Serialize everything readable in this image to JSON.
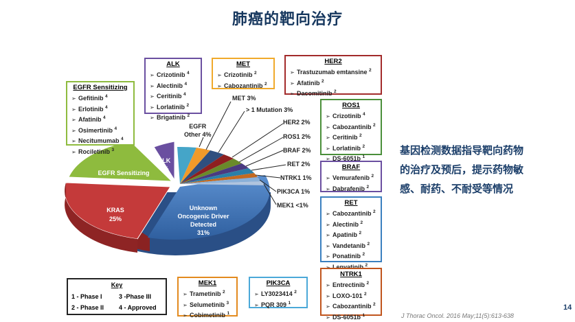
{
  "title": "肺癌的靶向治疗",
  "description": [
    "基因检测数据指导靶向药物",
    "的治疗及预后，提示药物敏",
    "感、耐药、不耐受等情况"
  ],
  "pie_labels": {
    "unknown": [
      "Unknown",
      "Oncogenic Driver",
      "Detected",
      "31%"
    ],
    "kras": [
      "KRAS",
      "25%"
    ],
    "egfr": [
      "EGFR Sensitizing",
      "17%"
    ],
    "alk": [
      "ALK",
      "7%"
    ]
  },
  "callouts": {
    "egfr_other": [
      "EGFR",
      "Other 4%"
    ],
    "met": "MET 3%",
    "mutation": "> 1 Mutation 3%",
    "her2": "HER2 2%",
    "ros1": "ROS1 2%",
    "braf": "BRAF 2%",
    "ret": "RET 2%",
    "ntrk1": "NTRK1 1%",
    "pik3ca": "PIK3CA 1%",
    "mek1": "MEK1 <1%"
  },
  "colors": {
    "egfr": "#4a8f3a",
    "alk": "#6a4fa0",
    "met": "#e38a1e",
    "her2": "#a22a2a",
    "ros1": "#4a8f3a",
    "braf": "#6a4fa0",
    "ret": "#3a7fbf",
    "ntrk1": "#c0541c",
    "mek1": "#e38a1e",
    "pik3ca": "#4aa8d8",
    "title": "#16375e"
  },
  "boxes": {
    "egfr": {
      "title": "EGFR Sensitizing",
      "items": [
        {
          "name": "Gefitinib",
          "sup": "4"
        },
        {
          "name": "Erlotinib",
          "sup": "4"
        },
        {
          "name": "Afatinib",
          "sup": "4"
        },
        {
          "name": "Osimertinib",
          "sup": "4"
        },
        {
          "name": "Necitumumab",
          "sup": "4"
        },
        {
          "name": "Rociletinib",
          "sup": "3"
        }
      ]
    },
    "alk": {
      "title": "ALK",
      "items": [
        {
          "name": "Crizotinib",
          "sup": "4"
        },
        {
          "name": "Alectinib",
          "sup": "4"
        },
        {
          "name": "Ceritinib",
          "sup": "4"
        },
        {
          "name": "Lorlatinib",
          "sup": "2"
        },
        {
          "name": "Brigatinib",
          "sup": "2"
        }
      ]
    },
    "met": {
      "title": "MET",
      "items": [
        {
          "name": "Crizotinib",
          "sup": "2"
        },
        {
          "name": "Cabozantinib",
          "sup": "2"
        }
      ]
    },
    "her2": {
      "title": "HER2",
      "items": [
        {
          "name": "Trastuzumab emtansine",
          "sup": "2"
        },
        {
          "name": "Afatinib",
          "sup": "2"
        },
        {
          "name": "Dacomitinib",
          "sup": "2"
        }
      ]
    },
    "ros1": {
      "title": "ROS1",
      "items": [
        {
          "name": "Crizotinib",
          "sup": "4"
        },
        {
          "name": "Cabozantinib",
          "sup": "2"
        },
        {
          "name": "Ceritinib",
          "sup": "2"
        },
        {
          "name": "Lorlatinib",
          "sup": "2"
        },
        {
          "name": "DS-6051b",
          "sup": "1"
        }
      ]
    },
    "braf": {
      "title": "BRAF",
      "items": [
        {
          "name": "Vemurafenib",
          "sup": "2"
        },
        {
          "name": "Dabrafenib",
          "sup": "2"
        }
      ]
    },
    "ret": {
      "title": "RET",
      "items": [
        {
          "name": "Cabozantinib",
          "sup": "2"
        },
        {
          "name": "Alectinib",
          "sup": "2"
        },
        {
          "name": "Apatinib",
          "sup": "2"
        },
        {
          "name": "Vandetanib",
          "sup": "2"
        },
        {
          "name": "Ponatinib",
          "sup": "2"
        },
        {
          "name": "Lenvatinib",
          "sup": "2"
        }
      ]
    },
    "ntrk1": {
      "title": "NTRK1",
      "items": [
        {
          "name": "Entrectinib",
          "sup": "2"
        },
        {
          "name": "LOXO-101",
          "sup": "2"
        },
        {
          "name": "Cabozantinib",
          "sup": "2"
        },
        {
          "name": "DS-6051b",
          "sup": "1"
        }
      ]
    },
    "mek1": {
      "title": "MEK1",
      "items": [
        {
          "name": "Trametinib",
          "sup": "2"
        },
        {
          "name": "Selumetinib",
          "sup": "3"
        },
        {
          "name": "Cobimetinib",
          "sup": "1"
        }
      ]
    },
    "pik3ca": {
      "title": "PIK3CA",
      "items": [
        {
          "name": "LY3023414",
          "sup": "2"
        },
        {
          "name": "PQR 309",
          "sup": "1"
        }
      ]
    }
  },
  "key": {
    "title": "Key",
    "r1a": "1 - Phase I",
    "r1b": "3  -Phase III",
    "r2a": "2 - Phase II",
    "r2b": "4 - Approved"
  },
  "footer": "J Thorac Oncol. 2016 May;11(5):613-638",
  "page_number": "14"
}
